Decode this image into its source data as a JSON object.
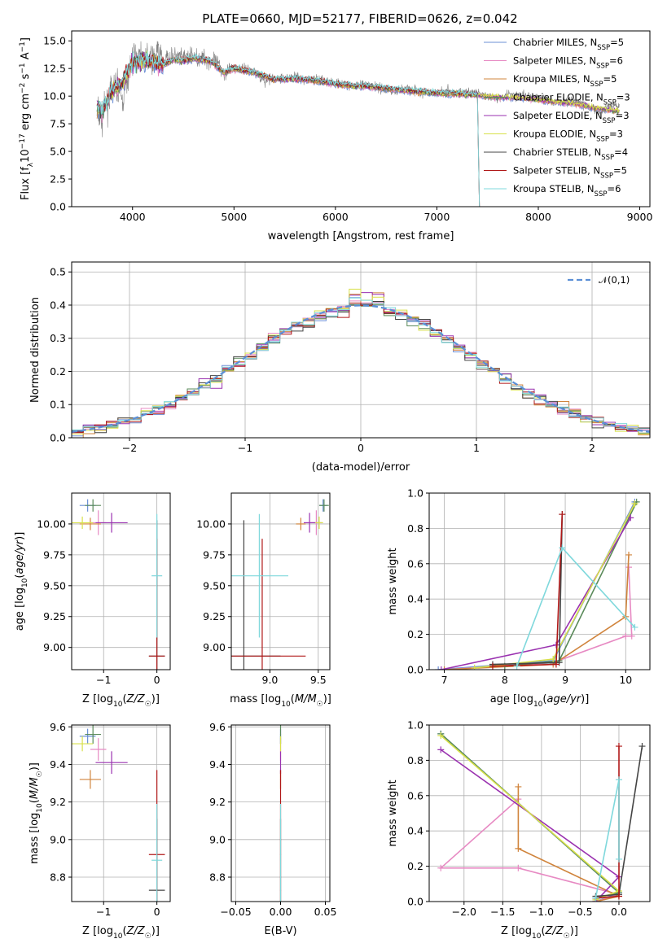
{
  "title": "PLATE=0660, MJD=52177, FIBERID=0626, z=0.042",
  "colors": {
    "Chabrier MILES": "#6b8fd6",
    "Salpeter MILES": "#e78ac3",
    "Kroupa MILES": "#d0843c",
    "Chabrier ELODIE": "#5a8a5a",
    "Salpeter ELODIE": "#9a32b0",
    "Kroupa ELODIE": "#d8e04a",
    "Chabrier STELIB": "#444444",
    "Salpeter STELIB": "#b01818",
    "Kroupa STELIB": "#7fd8dc",
    "normal": "#5b8fd6"
  },
  "chart_data": [
    {
      "id": "spectrum",
      "type": "line",
      "xlabel": "wavelength [Angstrom, rest frame]",
      "ylabel": "Flux [f_λ10^-17 erg cm^-2 s^-1 A^-1]",
      "xlim": [
        3400,
        9100
      ],
      "ylim": [
        0,
        15.9
      ],
      "xticks": [
        4000,
        5000,
        6000,
        7000,
        8000,
        9000
      ],
      "yticks": [
        0.0,
        2.5,
        5.0,
        7.5,
        10.0,
        12.5,
        15.0
      ],
      "grid": false,
      "legend_position": "upper-right",
      "legend": [
        {
          "model": "Chabrier MILES",
          "label": "Chabrier MILES, N",
          "sub": "SSP",
          "tail": "=5"
        },
        {
          "model": "Salpeter MILES",
          "label": "Salpeter MILES, N",
          "sub": "SSP",
          "tail": "=6"
        },
        {
          "model": "Kroupa MILES",
          "label": "Kroupa MILES, N",
          "sub": "SSP",
          "tail": "=5"
        },
        {
          "model": "Chabrier ELODIE",
          "label": "Chabrier ELODIE, N",
          "sub": "SSP",
          "tail": "=3"
        },
        {
          "model": "Salpeter ELODIE",
          "label": "Salpeter ELODIE, N",
          "sub": "SSP",
          "tail": "=3"
        },
        {
          "model": "Kroupa ELODIE",
          "label": "Kroupa ELODIE, N",
          "sub": "SSP",
          "tail": "=3"
        },
        {
          "model": "Chabrier STELIB",
          "label": "Chabrier STELIB, N",
          "sub": "SSP",
          "tail": "=4"
        },
        {
          "model": "Salpeter STELIB",
          "label": "Salpeter STELIB, N",
          "sub": "SSP",
          "tail": "=5"
        },
        {
          "model": "Kroupa STELIB",
          "label": "Kroupa STELIB, N",
          "sub": "SSP",
          "tail": "=6"
        }
      ],
      "data_series": {
        "name": "data",
        "color": "#808080",
        "x": [
          3650,
          3700,
          3750,
          3800,
          3850,
          3900,
          3950,
          4000,
          4050,
          4100,
          4150,
          4200,
          4250,
          4300,
          4350,
          4400,
          4500,
          4600,
          4700,
          4800,
          4900,
          5000,
          5100,
          5200,
          5300,
          5400,
          5500,
          5600,
          5700,
          5800,
          5900,
          6000,
          6100,
          6200,
          6300,
          6400,
          6500,
          6600,
          6700,
          6800,
          6900,
          7000,
          7100,
          7200,
          7300,
          7400,
          7500,
          7600,
          7700,
          7800,
          7900,
          8000,
          8100,
          8200,
          8300,
          8400,
          8500,
          8600,
          8700,
          8800
        ],
        "y": [
          8.5,
          8.0,
          9.5,
          10.5,
          11.0,
          9.5,
          11.5,
          13.5,
          13.8,
          13.5,
          13.6,
          13.3,
          14.0,
          13.2,
          13.5,
          13.6,
          13.5,
          13.6,
          13.4,
          13.2,
          12.2,
          12.6,
          12.5,
          12.3,
          11.3,
          11.6,
          11.6,
          11.8,
          11.5,
          11.6,
          11.3,
          11.2,
          11.0,
          11.0,
          11.0,
          10.9,
          10.6,
          10.4,
          10.8,
          10.5,
          10.2,
          10.3,
          10.5,
          10.3,
          10.4,
          10.2,
          10.0,
          9.8,
          10.2,
          10.1,
          10.0,
          9.8,
          9.6,
          9.4,
          9.6,
          9.4,
          9.0,
          8.6,
          9.2,
          9.0
        ]
      },
      "model_series": {
        "name": "Kroupa STELIB",
        "x": [
          3650,
          3700,
          3750,
          3800,
          3900,
          4000,
          4100,
          4200,
          4300,
          4400,
          4500,
          4600,
          4700,
          4800,
          4900,
          5000,
          5200,
          5400,
          5600,
          5800,
          6000,
          6200,
          6400,
          6600,
          6800,
          7000,
          7200,
          7400,
          7600,
          7800,
          8000,
          8200,
          8400,
          8600,
          8800
        ],
        "y": [
          9.0,
          8.6,
          9.6,
          10.5,
          11.2,
          13.0,
          13.2,
          13.1,
          12.8,
          13.3,
          13.2,
          13.4,
          13.3,
          13.0,
          12.1,
          12.5,
          12.1,
          11.5,
          11.6,
          11.4,
          11.1,
          10.9,
          10.8,
          10.6,
          10.4,
          10.3,
          10.2,
          10.1,
          9.9,
          9.9,
          9.7,
          9.5,
          9.3,
          8.9,
          8.7
        ]
      }
    },
    {
      "id": "residuals",
      "type": "line",
      "xlabel": "(data-model)/error",
      "ylabel": "Normed distribution",
      "xlim": [
        -2.5,
        2.5
      ],
      "ylim": [
        0,
        0.53
      ],
      "xticks": [
        -2,
        -1,
        0,
        1,
        2
      ],
      "yticks": [
        0.0,
        0.1,
        0.2,
        0.3,
        0.4,
        0.5
      ],
      "grid": true,
      "legend_position": "upper-right",
      "normal_label": "𝒩(0,1)",
      "bin_width": 0.1,
      "bin_start": -2.5
    },
    {
      "id": "age-vs-Z",
      "type": "scatter",
      "xlabel": "Z [log10(Z/Z☉)]",
      "ylabel": "age  [log10(age/yr)]",
      "xlim": [
        -1.6,
        0.25
      ],
      "ylim": [
        8.82,
        10.25
      ],
      "xticks": [
        -1,
        0
      ],
      "yticks": [
        9.0,
        9.25,
        9.5,
        9.75,
        10.0
      ],
      "grid": true
    },
    {
      "id": "age-vs-mass",
      "type": "scatter",
      "xlabel": "mass [log10(M/M☉)]",
      "ylabel": "",
      "xlim": [
        8.6,
        9.62
      ],
      "ylim": [
        8.82,
        10.25
      ],
      "xticks": [
        9.0,
        9.5
      ],
      "yticks": [
        9.0,
        9.25,
        9.5,
        9.75,
        10.0
      ],
      "grid": true
    },
    {
      "id": "weight-vs-age",
      "type": "line",
      "xlabel": "age  [log10(age/yr)]",
      "ylabel": "mass weight",
      "xlim": [
        6.75,
        10.4
      ],
      "ylim": [
        0,
        1.0
      ],
      "xticks": [
        7,
        8,
        9,
        10
      ],
      "yticks": [
        0.0,
        0.2,
        0.4,
        0.6,
        0.8,
        1.0
      ],
      "grid": true
    },
    {
      "id": "mass-vs-Z",
      "type": "scatter",
      "xlabel": "Z [log10(Z/Z☉)]",
      "ylabel": "mass [log10(M/M☉)]",
      "xlim": [
        -1.6,
        0.25
      ],
      "ylim": [
        8.67,
        9.61
      ],
      "xticks": [
        -1,
        0
      ],
      "yticks": [
        8.8,
        9.0,
        9.2,
        9.4,
        9.6
      ],
      "grid": true
    },
    {
      "id": "mass-vs-EBV",
      "type": "scatter",
      "xlabel": "E(B-V)",
      "ylabel": "",
      "xlim": [
        -0.055,
        0.055
      ],
      "ylim": [
        8.67,
        9.61
      ],
      "xticks": [
        -0.05,
        0.0,
        0.05
      ],
      "yticks": [
        8.8,
        9.0,
        9.2,
        9.4,
        9.6
      ],
      "grid": true
    },
    {
      "id": "weight-vs-Z",
      "type": "line",
      "xlabel": "Z [log10(Z/Z☉)]",
      "ylabel": "mass weight",
      "xlim": [
        -2.45,
        0.4
      ],
      "ylim": [
        0,
        1.0
      ],
      "xticks": [
        -2.0,
        -1.5,
        -1.0,
        -0.5,
        0.0
      ],
      "yticks": [
        0.0,
        0.2,
        0.4,
        0.6,
        0.8,
        1.0
      ],
      "grid": true
    }
  ],
  "model_results": [
    {
      "model": "Chabrier MILES",
      "Z": -1.3,
      "Zerr": 0.15,
      "age": 10.15,
      "ageerr": 0.05,
      "mass": 9.55,
      "masserr": 0.04,
      "ebv": 0.0,
      "weights": [
        {
          "age": 6.9,
          "Z": -0.3,
          "w": 0.0
        },
        {
          "age": 8.8,
          "Z": 0.0,
          "w": 0.05
        },
        {
          "age": 10.15,
          "Z": -2.3,
          "w": 0.95
        }
      ]
    },
    {
      "model": "Salpeter MILES",
      "Z": -1.1,
      "Zerr": 0.15,
      "age": 10.01,
      "ageerr": 0.1,
      "mass": 9.48,
      "masserr": 0.06,
      "ebv": 0.0,
      "weights": [
        {
          "age": 7.0,
          "Z": -0.3,
          "w": 0.0
        },
        {
          "age": 8.8,
          "Z": 0.0,
          "w": 0.04
        },
        {
          "age": 10.0,
          "Z": -1.3,
          "w": 0.19
        },
        {
          "age": 10.1,
          "Z": -2.3,
          "w": 0.19
        },
        {
          "age": 10.05,
          "Z": -1.3,
          "w": 0.58
        }
      ]
    },
    {
      "model": "Kroupa MILES",
      "Z": -1.25,
      "Zerr": 0.2,
      "age": 10.0,
      "ageerr": 0.05,
      "mass": 9.32,
      "masserr": 0.05,
      "ebv": 0.0,
      "weights": [
        {
          "age": 7.0,
          "Z": -0.3,
          "w": 0.0
        },
        {
          "age": 8.8,
          "Z": 0.0,
          "w": 0.03
        },
        {
          "age": 10.0,
          "Z": -1.3,
          "w": 0.3
        },
        {
          "age": 10.05,
          "Z": -1.3,
          "w": 0.65
        }
      ]
    },
    {
      "model": "Chabrier ELODIE",
      "Z": -1.2,
      "Zerr": 0.15,
      "age": 10.15,
      "ageerr": 0.05,
      "mass": 9.56,
      "masserr": 0.05,
      "ebv": 0.0,
      "weights": [
        {
          "age": 8.0,
          "Z": -0.3,
          "w": 0.02
        },
        {
          "age": 8.9,
          "Z": 0.0,
          "w": 0.05
        },
        {
          "age": 10.18,
          "Z": -2.3,
          "w": 0.95
        }
      ]
    },
    {
      "model": "Salpeter ELODIE",
      "Z": -0.85,
      "Zerr": 0.3,
      "age": 10.01,
      "ageerr": 0.08,
      "mass": 9.41,
      "masserr": 0.06,
      "ebv": 0.0,
      "weights": [
        {
          "age": 6.95,
          "Z": -0.3,
          "w": 0.0
        },
        {
          "age": 8.85,
          "Z": 0.0,
          "w": 0.14
        },
        {
          "age": 10.08,
          "Z": -2.3,
          "w": 0.86
        }
      ]
    },
    {
      "model": "Kroupa ELODIE",
      "Z": -1.4,
      "Zerr": 0.2,
      "age": 10.01,
      "ageerr": 0.05,
      "mass": 9.51,
      "masserr": 0.04,
      "ebv": 0.0,
      "weights": [
        {
          "age": 7.5,
          "Z": -0.3,
          "w": 0.01
        },
        {
          "age": 8.8,
          "Z": 0.0,
          "w": 0.06
        },
        {
          "age": 10.15,
          "Z": -2.3,
          "w": 0.94
        }
      ]
    },
    {
      "model": "Chabrier STELIB",
      "Z": 0.0,
      "Zerr": 0.15,
      "age": 8.93,
      "ageerr": 1.1,
      "mass": 8.73,
      "masserr": 0.38,
      "ebv": 0.0,
      "weights": [
        {
          "age": 7.8,
          "Z": -0.3,
          "w": 0.03
        },
        {
          "age": 8.9,
          "Z": 0.0,
          "w": 0.04
        },
        {
          "age": 8.95,
          "Z": 0.3,
          "w": 0.88
        }
      ]
    },
    {
      "model": "Salpeter STELIB",
      "Z": 0.0,
      "Zerr": 0.15,
      "age": 8.93,
      "ageerr": 0.95,
      "mass": 8.92,
      "masserr": 0.45,
      "ebv": 0.0,
      "weights": [
        {
          "age": 7.8,
          "Z": -0.3,
          "w": 0.02
        },
        {
          "age": 8.85,
          "Z": 0.0,
          "w": 0.03
        },
        {
          "age": 8.95,
          "Z": 0.0,
          "w": 0.88
        }
      ]
    },
    {
      "model": "Kroupa STELIB",
      "Z": 0.0,
      "Zerr": 0.1,
      "age": 9.58,
      "ageerr": 0.5,
      "mass": 8.89,
      "masserr": 0.3,
      "ebv": 0.0,
      "weights": [
        {
          "age": 8.2,
          "Z": -0.3,
          "w": 0.02
        },
        {
          "age": 8.95,
          "Z": 0.0,
          "w": 0.69
        },
        {
          "age": 10.15,
          "Z": 0.0,
          "w": 0.24
        }
      ]
    }
  ]
}
